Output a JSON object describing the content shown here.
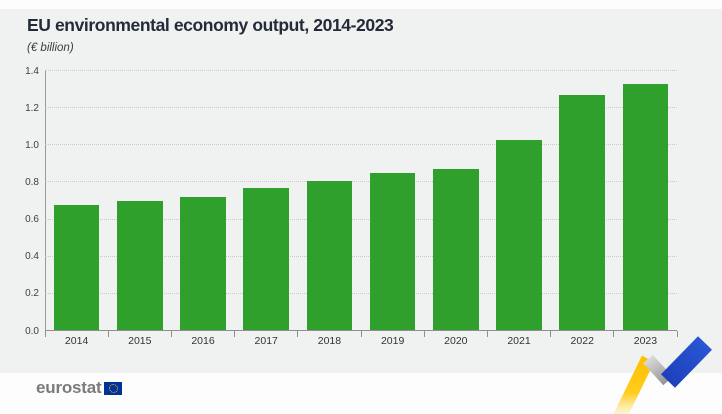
{
  "header": {
    "title": "EU environmental economy output, 2014-2023",
    "subtitle": "(€ billion)"
  },
  "chart_data": {
    "type": "bar",
    "title": "EU environmental economy output, 2014-2023",
    "unit_label": "(€ billion)",
    "categories": [
      "2014",
      "2015",
      "2016",
      "2017",
      "2018",
      "2019",
      "2020",
      "2021",
      "2022",
      "2023"
    ],
    "values": [
      0.68,
      0.7,
      0.72,
      0.77,
      0.81,
      0.85,
      0.87,
      1.03,
      1.27,
      1.33
    ],
    "xlabel": "",
    "ylabel": "€ billion",
    "ylim": [
      0,
      1.4
    ],
    "yticks": [
      0.0,
      0.2,
      0.4,
      0.6,
      0.8,
      1.0,
      1.2,
      1.4
    ],
    "grid": "horizontal-dotted",
    "legend": "none",
    "bar_color": "#30a02c"
  },
  "footer": {
    "brand": "eurostat"
  },
  "icons": {
    "eu_flag": "eu-flag-icon",
    "swoosh": "trend-swoosh-icon"
  },
  "colors": {
    "panel_background": "#f0f1f1",
    "page_background": "#fdfdfd",
    "bar_green": "#30a02c",
    "title_text": "#232b38",
    "axis_line": "#8f8f8f",
    "gridline": "#c9c9c9",
    "eu_flag_blue": "#003399",
    "eurostat_text": "#7b7b7b",
    "swoosh_yellow": "#ffc403",
    "swoosh_gray": "#a8a8a8",
    "swoosh_blue": "#2450cd"
  }
}
